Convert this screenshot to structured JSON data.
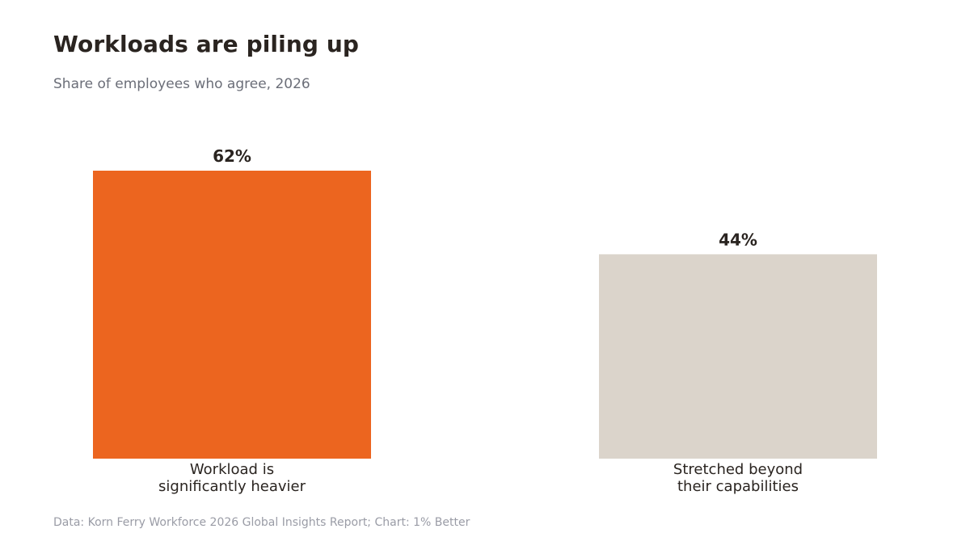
{
  "chart_data": {
    "type": "bar",
    "title": "Workloads are piling up",
    "subtitle": "Share of employees who agree, 2026",
    "categories": [
      [
        "Workload is",
        "significantly heavier"
      ],
      [
        "Stretched beyond",
        "their capabilities"
      ]
    ],
    "values": [
      62,
      44
    ],
    "value_labels": [
      "62%",
      "44%"
    ],
    "colors": [
      "#ec651f",
      "#dbd4cb"
    ],
    "ylim": [
      0,
      62
    ],
    "grid": false,
    "source": "Data: Korn Ferry Workforce 2026 Global Insights Report; Chart: 1% Better"
  }
}
